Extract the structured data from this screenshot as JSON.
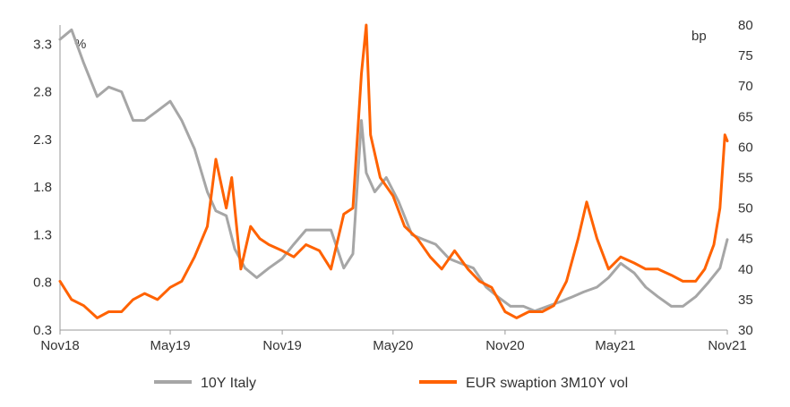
{
  "chart_data": {
    "type": "line",
    "left_unit": "%",
    "right_unit": "bp",
    "x_ticks": [
      "Nov18",
      "May19",
      "Nov19",
      "May20",
      "Nov20",
      "May21",
      "Nov21"
    ],
    "x_tick_values": [
      "2018-11-01",
      "2019-05-01",
      "2019-11-01",
      "2020-05-01",
      "2020-11-01",
      "2021-05-01",
      "2021-11-01"
    ],
    "left_axis": {
      "ticks": [
        "0.3",
        "0.8",
        "1.3",
        "1.8",
        "2.3",
        "2.8",
        "3.3"
      ],
      "ylim": [
        0.3,
        3.5
      ]
    },
    "right_axis": {
      "ticks": [
        "30",
        "35",
        "40",
        "45",
        "50",
        "55",
        "60",
        "65",
        "70",
        "75",
        "80"
      ],
      "ylim": [
        30,
        80
      ]
    },
    "grid": false,
    "legend_position": "bottom",
    "series": [
      {
        "name": "10Y Italy",
        "axis": "left",
        "color": "#a6a6a6",
        "x": [
          "2018-11-01",
          "2018-11-20",
          "2018-12-10",
          "2019-01-01",
          "2019-01-20",
          "2019-02-10",
          "2019-03-01",
          "2019-03-20",
          "2019-04-10",
          "2019-05-01",
          "2019-05-20",
          "2019-06-10",
          "2019-07-01",
          "2019-07-15",
          "2019-08-01",
          "2019-08-15",
          "2019-09-01",
          "2019-09-20",
          "2019-10-10",
          "2019-11-01",
          "2019-11-20",
          "2019-12-10",
          "2020-01-01",
          "2020-01-20",
          "2020-02-10",
          "2020-02-25",
          "2020-03-10",
          "2020-03-18",
          "2020-04-01",
          "2020-04-20",
          "2020-05-10",
          "2020-06-01",
          "2020-06-20",
          "2020-07-10",
          "2020-08-01",
          "2020-08-20",
          "2020-09-10",
          "2020-10-01",
          "2020-10-20",
          "2020-11-10",
          "2020-12-01",
          "2020-12-20",
          "2021-01-10",
          "2021-02-01",
          "2021-02-20",
          "2021-03-10",
          "2021-04-01",
          "2021-04-20",
          "2021-05-10",
          "2021-06-01",
          "2021-06-20",
          "2021-07-10",
          "2021-08-01",
          "2021-08-20",
          "2021-09-10",
          "2021-10-01",
          "2021-10-20",
          "2021-11-01"
        ],
        "values": [
          3.35,
          3.45,
          3.1,
          2.75,
          2.85,
          2.8,
          2.5,
          2.5,
          2.6,
          2.7,
          2.5,
          2.2,
          1.75,
          1.55,
          1.5,
          1.15,
          0.95,
          0.85,
          0.95,
          1.05,
          1.2,
          1.35,
          1.35,
          1.35,
          0.95,
          1.1,
          2.5,
          1.95,
          1.75,
          1.9,
          1.65,
          1.3,
          1.25,
          1.2,
          1.05,
          1.0,
          0.95,
          0.75,
          0.65,
          0.55,
          0.55,
          0.5,
          0.55,
          0.6,
          0.65,
          0.7,
          0.75,
          0.85,
          1.0,
          0.9,
          0.75,
          0.65,
          0.55,
          0.55,
          0.65,
          0.8,
          0.95,
          1.25
        ]
      },
      {
        "name": "EUR swaption 3M10Y vol",
        "axis": "right",
        "color": "#ff6200",
        "x": [
          "2018-11-01",
          "2018-11-20",
          "2018-12-10",
          "2019-01-01",
          "2019-01-20",
          "2019-02-10",
          "2019-03-01",
          "2019-03-20",
          "2019-04-10",
          "2019-05-01",
          "2019-05-20",
          "2019-06-10",
          "2019-07-01",
          "2019-07-15",
          "2019-08-01",
          "2019-08-10",
          "2019-08-25",
          "2019-09-10",
          "2019-09-25",
          "2019-10-10",
          "2019-11-01",
          "2019-11-20",
          "2019-12-10",
          "2020-01-01",
          "2020-01-20",
          "2020-02-10",
          "2020-02-25",
          "2020-03-10",
          "2020-03-18",
          "2020-03-25",
          "2020-04-10",
          "2020-05-01",
          "2020-05-20",
          "2020-06-10",
          "2020-07-01",
          "2020-07-20",
          "2020-08-10",
          "2020-09-01",
          "2020-09-20",
          "2020-10-10",
          "2020-11-01",
          "2020-11-20",
          "2020-12-10",
          "2021-01-01",
          "2021-01-20",
          "2021-02-10",
          "2021-03-01",
          "2021-03-15",
          "2021-04-01",
          "2021-04-20",
          "2021-05-10",
          "2021-06-01",
          "2021-06-20",
          "2021-07-10",
          "2021-08-01",
          "2021-08-20",
          "2021-09-10",
          "2021-09-25",
          "2021-10-10",
          "2021-10-20",
          "2021-10-28",
          "2021-11-01"
        ],
        "values": [
          38,
          35,
          34,
          32,
          33,
          33,
          35,
          36,
          35,
          37,
          38,
          42,
          47,
          58,
          50,
          55,
          40,
          47,
          45,
          44,
          43,
          42,
          44,
          43,
          40,
          49,
          50,
          72,
          80,
          62,
          55,
          52,
          47,
          45,
          42,
          40,
          43,
          40,
          38,
          37,
          33,
          32,
          33,
          33,
          34,
          38,
          45,
          51,
          45,
          40,
          42,
          41,
          40,
          40,
          39,
          38,
          38,
          40,
          44,
          50,
          62,
          61
        ]
      }
    ]
  },
  "legend": {
    "items": [
      {
        "label": "10Y Italy",
        "color": "#a6a6a6"
      },
      {
        "label": "EUR swaption 3M10Y vol",
        "color": "#ff6200"
      }
    ]
  }
}
